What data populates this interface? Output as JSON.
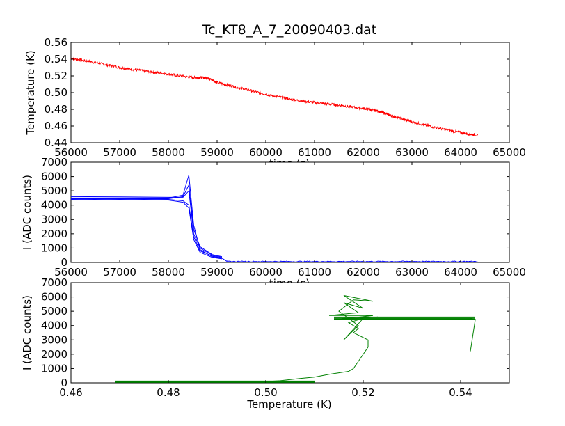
{
  "title": "Tc_KT8_A_7_20090403.dat",
  "colors": {
    "temperature": "#ff0000",
    "current": "#0000ff",
    "iv": "#008000",
    "axes": "#000000"
  },
  "chart_data": [
    {
      "type": "line",
      "xlabel": "time (s)",
      "ylabel": "Temperature (K)",
      "xlim": [
        56000,
        65000
      ],
      "ylim": [
        0.44,
        0.56
      ],
      "xticks": [
        "56000",
        "57000",
        "58000",
        "59000",
        "60000",
        "61000",
        "62000",
        "63000",
        "64000",
        "65000"
      ],
      "yticks": [
        "0.44",
        "0.46",
        "0.48",
        "0.50",
        "0.52",
        "0.54",
        "0.56"
      ],
      "series": [
        {
          "color": "#ff0000",
          "x": [
            56000,
            56500,
            57000,
            57500,
            58000,
            58500,
            58800,
            59000,
            59500,
            60000,
            60500,
            61000,
            61500,
            62000,
            62300,
            62600,
            63000,
            63500,
            64000,
            64350
          ],
          "y": [
            0.541,
            0.536,
            0.53,
            0.526,
            0.522,
            0.518,
            0.518,
            0.512,
            0.505,
            0.498,
            0.492,
            0.488,
            0.485,
            0.481,
            0.478,
            0.472,
            0.465,
            0.458,
            0.452,
            0.449
          ]
        }
      ]
    },
    {
      "type": "line",
      "xlabel": "time (s)",
      "ylabel": "I (ADC counts)",
      "xlim": [
        56000,
        65000
      ],
      "ylim": [
        0,
        7000
      ],
      "xticks": [
        "56000",
        "57000",
        "58000",
        "59000",
        "60000",
        "61000",
        "62000",
        "63000",
        "64000",
        "65000"
      ],
      "yticks": [
        "0",
        "1000",
        "2000",
        "3000",
        "4000",
        "5000",
        "6000",
        "7000"
      ],
      "series": [
        {
          "color": "#0000ff",
          "x": [
            56000,
            57000,
            58000,
            58300,
            58420,
            58520,
            58650,
            58900,
            59100,
            59200,
            60000,
            61000,
            62000,
            63000,
            64000,
            64350
          ],
          "y": [
            4500,
            4500,
            4500,
            4700,
            6100,
            2600,
            900,
            400,
            300,
            80,
            60,
            70,
            60,
            70,
            60,
            70
          ]
        },
        {
          "color": "#0000ff",
          "x": [
            56000,
            57000,
            58000,
            58300,
            58420,
            58520,
            58650,
            58900,
            59100
          ],
          "y": [
            4400,
            4450,
            4450,
            4600,
            5400,
            2300,
            1100,
            550,
            400
          ]
        },
        {
          "color": "#0000ff",
          "x": [
            56000,
            57000,
            58000,
            58300,
            58420,
            58520,
            58650,
            58900,
            59100
          ],
          "y": [
            4600,
            4580,
            4550,
            4550,
            5000,
            2000,
            1000,
            500,
            350
          ]
        },
        {
          "color": "#0000ff",
          "x": [
            56000,
            57000,
            58000,
            58300,
            58420,
            58520,
            58650,
            58900,
            59100
          ],
          "y": [
            4450,
            4450,
            4400,
            4300,
            4000,
            1800,
            800,
            450,
            300
          ]
        },
        {
          "color": "#0000ff",
          "x": [
            56000,
            57000,
            58000,
            58300,
            58420,
            58520,
            58650,
            58900,
            59100
          ],
          "y": [
            4350,
            4400,
            4350,
            4200,
            3800,
            1600,
            700,
            350,
            250
          ]
        }
      ]
    },
    {
      "type": "line",
      "xlabel": "Temperature (K)",
      "ylabel": "I (ADC counts)",
      "xlim": [
        0.46,
        0.55
      ],
      "ylim": [
        0,
        7000
      ],
      "xticks": [
        "0.46",
        "0.48",
        "0.50",
        "0.52",
        "0.54"
      ],
      "yticks": [
        "0",
        "1000",
        "2000",
        "3000",
        "4000",
        "5000",
        "6000",
        "7000"
      ],
      "series": [
        {
          "color": "#008000",
          "x": [
            0.469,
            0.475,
            0.481,
            0.487,
            0.493,
            0.499,
            0.503,
            0.507,
            0.51,
            0.513,
            0.515,
            0.517,
            0.518,
            0.519,
            0.52,
            0.521,
            0.521,
            0.518,
            0.519,
            0.517,
            0.52,
            0.516,
            0.519,
            0.515,
            0.518,
            0.522,
            0.516,
            0.52,
            0.516,
            0.519,
            0.513,
            0.522,
            0.514,
            0.523,
            0.515,
            0.516,
            0.525,
            0.53,
            0.535,
            0.54,
            0.542,
            0.543,
            0.542
          ],
          "y": [
            50,
            80,
            70,
            90,
            60,
            80,
            150,
            300,
            400,
            600,
            700,
            800,
            1000,
            1500,
            2000,
            2500,
            3000,
            3500,
            3800,
            4200,
            4500,
            3000,
            4000,
            5000,
            5800,
            5700,
            6100,
            5200,
            5600,
            4900,
            4700,
            4700,
            4400,
            4600,
            4400,
            4500,
            4500,
            4500,
            4500,
            4500,
            4500,
            4400,
            2200
          ]
        }
      ]
    }
  ]
}
